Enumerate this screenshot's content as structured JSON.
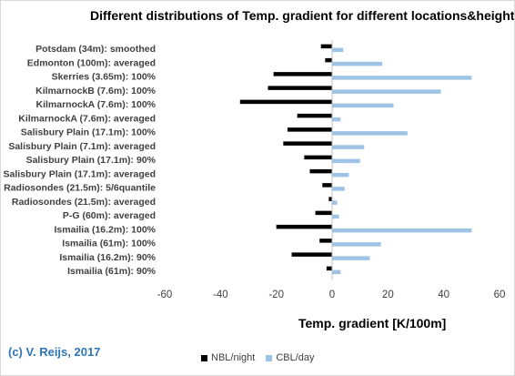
{
  "chart_data": {
    "type": "bar",
    "orientation": "horizontal",
    "title": "Different distributions of Temp. gradient for different locations&heights",
    "xlabel": "Temp. gradient [K/100m]",
    "ylabel": "",
    "xlim": [
      -60,
      60
    ],
    "xticks": [
      "-60",
      "-40",
      "-20",
      "0",
      "20",
      "40",
      "60"
    ],
    "grid": false,
    "legend_position": "bottom",
    "categories": [
      "Potsdam (34m): smoothed",
      "Edmonton (100m): averaged",
      "Skerries (3.65m): 100%",
      "KilmarnockB (7.6m): 100%",
      "KilmarnockA (7.6m): 100%",
      "KilmarnockA (7.6m): averaged",
      "Salisbury Plain (17.1m): 100%",
      "Salisbury Plain (7.1m): averaged",
      "Salisbury Plain (17.1m): 90%",
      "Salisbury Plain (17.1m): averaged",
      "Radiosondes (21.5m): 5/6quantile",
      "Radiosondes (21.5m): averaged",
      "P-G (60m): averaged",
      "Ismailia (16.2m): 100%",
      "Ismailia (61m): 100%",
      "Ismailia (16.2m): 90%",
      "Ismailia (61m): 90%"
    ],
    "series": [
      {
        "name": "NBL/night",
        "color": "#000000",
        "values": [
          -4,
          -2.5,
          -21,
          -23,
          -33,
          -12.5,
          -16,
          -17.5,
          -10,
          -8,
          -3.5,
          -1.2,
          -6,
          -20,
          -4.5,
          -14.5,
          -2
        ]
      },
      {
        "name": "CBL/day",
        "color": "#9dc3e6",
        "values": [
          4,
          18,
          50,
          39,
          22,
          3,
          27,
          11.5,
          10,
          6,
          4.5,
          1.8,
          2.5,
          50,
          17.5,
          13.5,
          3
        ]
      }
    ]
  },
  "copyright": "(c) V. Reijs, 2017"
}
